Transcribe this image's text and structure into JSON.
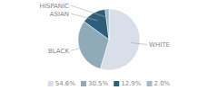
{
  "chart_data": {
    "type": "pie",
    "categories": [
      "WHITE",
      "BLACK",
      "ASIAN",
      "HISPANIC"
    ],
    "values": [
      54.6,
      30.5,
      12.9,
      2.0
    ],
    "value_labels": [
      "54.6%",
      "30.5%",
      "12.9%",
      "2.0%"
    ],
    "colors": [
      "#d9dfe8",
      "#8faab8",
      "#2e5f7a",
      "#a0bcc8"
    ],
    "legend": "bottom"
  }
}
